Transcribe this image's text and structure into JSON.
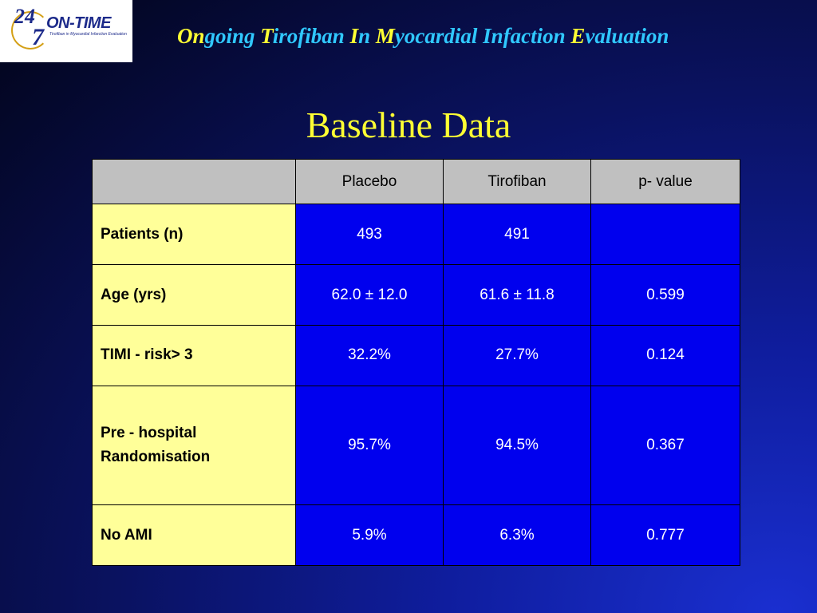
{
  "logo": {
    "num_top": "24",
    "num_bottom": "7",
    "name": "ON-TIME",
    "subtitle": "Tirofiban in Myocardial Infarction Evaluation"
  },
  "banner": {
    "parts": [
      {
        "text": "On",
        "style": "accent"
      },
      {
        "text": "going ",
        "style": "rest"
      },
      {
        "text": "T",
        "style": "accent"
      },
      {
        "text": "irofiban ",
        "style": "rest"
      },
      {
        "text": "I",
        "style": "accent"
      },
      {
        "text": "n ",
        "style": "rest"
      },
      {
        "text": "M",
        "style": "accent"
      },
      {
        "text": "yocardial Infaction ",
        "style": "rest"
      },
      {
        "text": "E",
        "style": "accent"
      },
      {
        "text": "valuation",
        "style": "rest"
      }
    ]
  },
  "title": "Baseline Data",
  "table": {
    "headers": [
      "",
      "Placebo",
      "Tirofiban",
      "p- value"
    ],
    "rows": [
      {
        "label": "Patients (n)",
        "placebo": "493",
        "tirofiban": "491",
        "p": ""
      },
      {
        "label": "Age (yrs)",
        "placebo": "62.0 ± 12.0",
        "tirofiban": "61.6 ± 11.8",
        "p": "0.599"
      },
      {
        "label": "TIMI - risk> 3",
        "placebo": "32.2%",
        "tirofiban": "27.7%",
        "p": "0.124"
      },
      {
        "label": "Pre - hospital Randomisation",
        "placebo": "95.7%",
        "tirofiban": "94.5%",
        "p": "0.367"
      },
      {
        "label": "No AMI",
        "placebo": "5.9%",
        "tirofiban": "6.3%",
        "p": "0.777"
      }
    ]
  },
  "colors": {
    "title": "#ffff33",
    "banner_rest": "#30c8ff",
    "header_bg": "#c0c0c0",
    "row_label_bg": "#ffff99",
    "value_bg": "#0000ee"
  }
}
